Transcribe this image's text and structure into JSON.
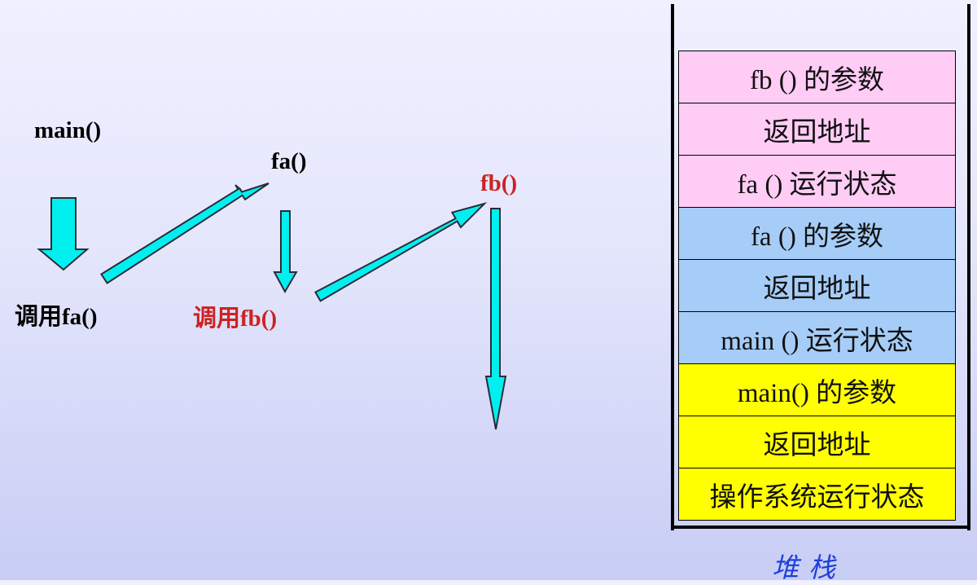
{
  "flow": {
    "main_label": "main()",
    "fa_label": "fa()",
    "call_fa_label": "调用fa()",
    "fb_label": "fb()",
    "call_fb_label": "调用fb()"
  },
  "colors": {
    "arrow_fill": "#00f0f0",
    "highlight_text": "#cc2222",
    "fb_frame": "#ffccf5",
    "fa_frame": "#a6cdf7",
    "main_frame": "#ffff00",
    "caption": "#1f3fd8"
  },
  "stack": {
    "caption": "堆栈",
    "cells": [
      {
        "text": "fb ()  的参数",
        "group": "fb"
      },
      {
        "text": "返回地址",
        "group": "fb"
      },
      {
        "text": "fa () 运行状态",
        "group": "fb"
      },
      {
        "text": "fa () 的参数",
        "group": "fa"
      },
      {
        "text": "返回地址",
        "group": "fa"
      },
      {
        "text": "main () 运行状态",
        "group": "fa"
      },
      {
        "text": "main() 的参数",
        "group": "main"
      },
      {
        "text": "返回地址",
        "group": "main"
      },
      {
        "text": "操作系统运行状态",
        "group": "main"
      }
    ]
  }
}
